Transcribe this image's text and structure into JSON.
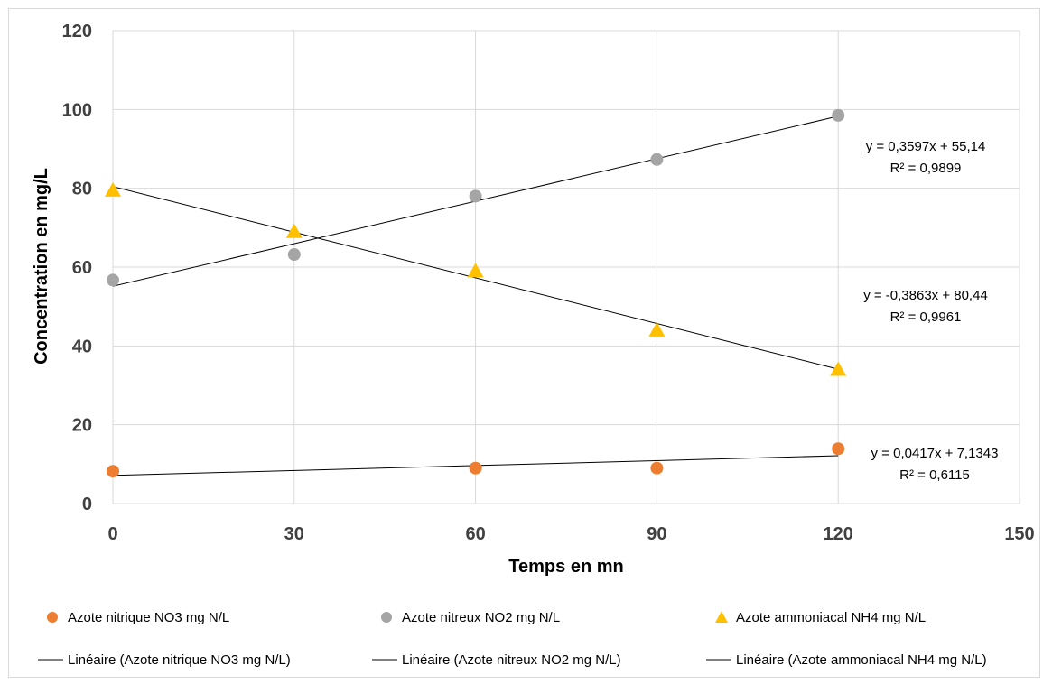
{
  "colors": {
    "nitrique": "#ED7D31",
    "nitreux": "#A5A5A5",
    "ammoniacal": "#FFC000",
    "trendline": "#000000",
    "grid": "#d9d9d9"
  },
  "chart_data": {
    "type": "scatter",
    "title": "",
    "xlabel": "Temps en mn",
    "ylabel": "Concentration en mg/L",
    "xlim": [
      0,
      150
    ],
    "ylim": [
      0,
      120
    ],
    "xticks": [
      0,
      30,
      60,
      90,
      120,
      150
    ],
    "yticks": [
      0,
      20,
      40,
      60,
      80,
      100,
      120
    ],
    "grid": true,
    "legend_position": "bottom",
    "series": [
      {
        "name": "Azote nitrique NO3 mg N/L",
        "marker": "circle",
        "color": "#ED7D31",
        "x": [
          0,
          60,
          90,
          120
        ],
        "y": [
          8.2,
          9.0,
          9.0,
          13.9
        ],
        "trendline": {
          "label": "Linéaire (Azote nitrique NO3 mg N/L)",
          "slope": 0.0417,
          "intercept": 7.1343,
          "equation": "y = 0,0417x + 7,1343",
          "r2": "R² = 0,6115"
        }
      },
      {
        "name": "Azote nitreux NO2 mg N/L",
        "marker": "circle",
        "color": "#A5A5A5",
        "x": [
          0,
          30,
          60,
          90,
          120
        ],
        "y": [
          56.7,
          63.2,
          78.0,
          87.3,
          98.5
        ],
        "trendline": {
          "label": "Linéaire (Azote nitreux NO2 mg N/L)",
          "slope": 0.3597,
          "intercept": 55.14,
          "equation": "y = 0,3597x + 55,14",
          "r2": "R² = 0,9899"
        }
      },
      {
        "name": "Azote ammoniacal NH4 mg N/L",
        "marker": "triangle",
        "color": "#FFC000",
        "x": [
          0,
          30,
          60,
          90,
          120
        ],
        "y": [
          79.5,
          69.0,
          59.0,
          44.0,
          34.0
        ],
        "trendline": {
          "label": "Linéaire (Azote ammoniacal NH4 mg N/L)",
          "slope": -0.3863,
          "intercept": 80.44,
          "equation": "y = -0,3863x + 80,44",
          "r2": "R² = 0,9961"
        }
      }
    ]
  }
}
